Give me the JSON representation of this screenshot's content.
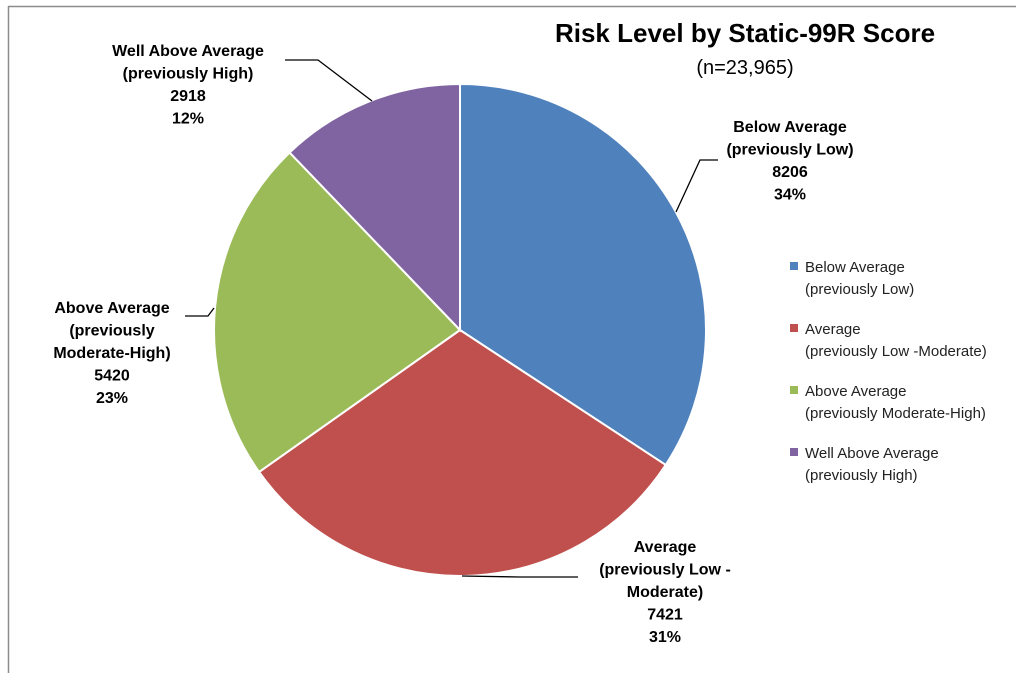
{
  "chart_data": {
    "type": "pie",
    "title": "Risk Level by Static-99R Score",
    "subtitle": "(n=23,965)",
    "slices": [
      {
        "name": "Below Average (previously Low)",
        "label_lines": [
          "Below Average",
          "(previously Low)"
        ],
        "value": 8206,
        "percent": "34%",
        "color": "#4F81BD",
        "legend_lines": [
          "Below Average",
          "(previously Low)"
        ]
      },
      {
        "name": "Average (previously Low -Moderate)",
        "label_lines": [
          "Average",
          "(previously Low -",
          "Moderate)"
        ],
        "value": 7421,
        "percent": "31%",
        "color": "#C0504D",
        "legend_lines": [
          "Average",
          "(previously Low -Moderate)"
        ]
      },
      {
        "name": "Above Average (previously Moderate-High)",
        "label_lines": [
          "Above Average",
          "(previously",
          "Moderate-High)"
        ],
        "value": 5420,
        "percent": "23%",
        "color": "#9BBB59",
        "legend_lines": [
          "Above Average",
          "(previously Moderate-High)"
        ]
      },
      {
        "name": "Well Above Average (previously High)",
        "label_lines": [
          "Well Above Average",
          "(previously High)"
        ],
        "value": 2918,
        "percent": "12%",
        "color": "#8064A2",
        "legend_lines": [
          "Well Above Average",
          "(previously High)"
        ]
      }
    ],
    "legend_position": "right"
  }
}
